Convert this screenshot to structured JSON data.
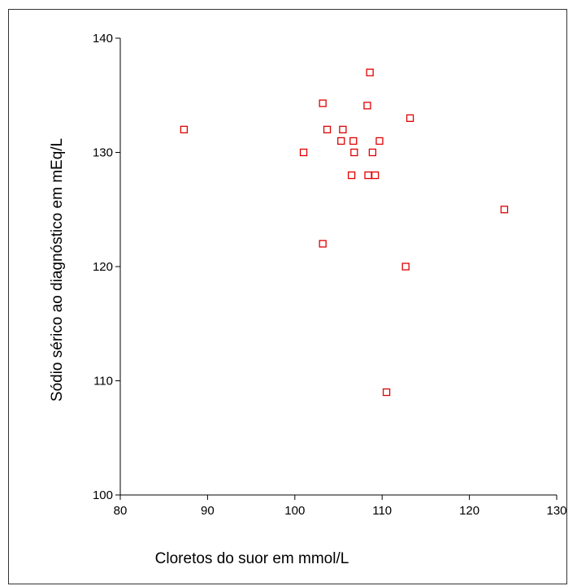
{
  "chart_data": {
    "type": "scatter",
    "title": "",
    "xlabel": "Cloretos do suor em mmol/L",
    "ylabel": "Sódio sérico ao diagnóstico em mEq/L",
    "xlim": [
      80,
      130
    ],
    "ylim": [
      100,
      140
    ],
    "x_ticks": [
      "80",
      "90",
      "100",
      "110",
      "120",
      "130"
    ],
    "y_ticks": [
      "100",
      "110",
      "120",
      "130",
      "140"
    ],
    "grid": false,
    "legend": "none",
    "marker": "hollow-square",
    "marker_color": "#e00000",
    "points": [
      {
        "x": 87.3,
        "y": 132
      },
      {
        "x": 101.0,
        "y": 130
      },
      {
        "x": 103.2,
        "y": 134.3
      },
      {
        "x": 103.2,
        "y": 122
      },
      {
        "x": 103.7,
        "y": 132
      },
      {
        "x": 105.3,
        "y": 131
      },
      {
        "x": 105.5,
        "y": 132
      },
      {
        "x": 106.5,
        "y": 128
      },
      {
        "x": 106.7,
        "y": 131
      },
      {
        "x": 106.8,
        "y": 130
      },
      {
        "x": 108.3,
        "y": 134.1
      },
      {
        "x": 108.4,
        "y": 128
      },
      {
        "x": 108.6,
        "y": 137
      },
      {
        "x": 108.9,
        "y": 130
      },
      {
        "x": 109.2,
        "y": 128
      },
      {
        "x": 109.7,
        "y": 131
      },
      {
        "x": 110.5,
        "y": 109
      },
      {
        "x": 112.7,
        "y": 120
      },
      {
        "x": 113.2,
        "y": 133
      },
      {
        "x": 124.0,
        "y": 125
      }
    ]
  }
}
